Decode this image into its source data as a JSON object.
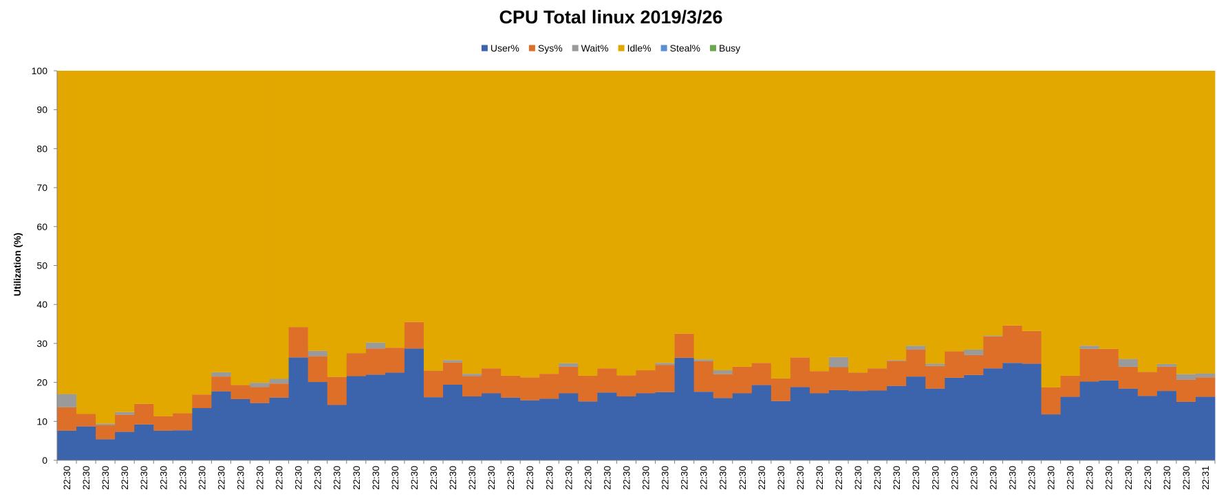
{
  "chart_data": {
    "type": "bar",
    "stacked": true,
    "title": "CPU Total linux  2019/3/26",
    "ylabel": "Utilization (%)",
    "xlabel": "",
    "ylim": [
      0,
      100
    ],
    "yticks": [
      0,
      10,
      20,
      30,
      40,
      50,
      60,
      70,
      80,
      90,
      100
    ],
    "legend_position": "top-center",
    "grid": false,
    "categories": [
      "22:30",
      "22:30",
      "22:30",
      "22:30",
      "22:30",
      "22:30",
      "22:30",
      "22:30",
      "22:30",
      "22:30",
      "22:30",
      "22:30",
      "22:30",
      "22:30",
      "22:30",
      "22:30",
      "22:30",
      "22:30",
      "22:30",
      "22:30",
      "22:30",
      "22:30",
      "22:30",
      "22:30",
      "22:30",
      "22:30",
      "22:30",
      "22:30",
      "22:30",
      "22:30",
      "22:30",
      "22:30",
      "22:30",
      "22:30",
      "22:30",
      "22:30",
      "22:30",
      "22:30",
      "22:30",
      "22:30",
      "22:30",
      "22:30",
      "22:30",
      "22:30",
      "22:30",
      "22:30",
      "22:30",
      "22:30",
      "22:30",
      "22:30",
      "22:30",
      "22:30",
      "22:30",
      "22:30",
      "22:30",
      "22:30",
      "22:30",
      "22:30",
      "22:30",
      "22:31"
    ],
    "series": [
      {
        "name": "User%",
        "color": "#3c64ad",
        "values": [
          7.6,
          8.7,
          5.4,
          7.3,
          9.2,
          7.6,
          7.7,
          13.4,
          17.7,
          15.7,
          14.7,
          16.1,
          26.4,
          20.1,
          14.2,
          21.6,
          22,
          22.5,
          28.7,
          16.2,
          19.4,
          16.4,
          17.2,
          16.1,
          15.4,
          15.8,
          17.2,
          15.1,
          17.4,
          16.4,
          17.2,
          17.5,
          26.3,
          17.6,
          16,
          17.2,
          19.3,
          15.2,
          18.8,
          17.2,
          18,
          17.8,
          17.9,
          19.1,
          21.5,
          18.4,
          21.2,
          21.9,
          23.6,
          25,
          24.8,
          11.8,
          16.3,
          20.2,
          20.5,
          18.4,
          16.5,
          17.8,
          15,
          16.3
        ]
      },
      {
        "name": "Sys%",
        "color": "#de6f28",
        "values": [
          6,
          3.2,
          3.6,
          4.4,
          5.3,
          3.7,
          4.4,
          3.5,
          3.8,
          3.6,
          4.1,
          3.6,
          7.8,
          6.6,
          7.2,
          5.9,
          6.7,
          6.4,
          6.8,
          6.8,
          5.7,
          5.2,
          6.4,
          5.6,
          5.9,
          6.4,
          6.8,
          6.6,
          6.2,
          5.4,
          5.9,
          7,
          6.2,
          7.8,
          6.1,
          6.8,
          5.7,
          5.8,
          7.6,
          5.7,
          5.9,
          4.7,
          5.7,
          6.4,
          6.9,
          5.8,
          6.8,
          5.1,
          8.2,
          9.6,
          8.4,
          6.9,
          5.4,
          8.4,
          8.1,
          5.6,
          6.2,
          6.2,
          5.7,
          5
        ]
      },
      {
        "name": "Wait%",
        "color": "#9a9a9a",
        "values": [
          3.4,
          0,
          0.4,
          0.7,
          0,
          0,
          0,
          0,
          1.1,
          0,
          1.1,
          1.2,
          0,
          1.4,
          0,
          0,
          1.5,
          0,
          0,
          0,
          0.6,
          0.6,
          0,
          0,
          0,
          0,
          0.9,
          0,
          0,
          0,
          0,
          0.5,
          0,
          0.5,
          1,
          0,
          0,
          0,
          0,
          0,
          2.6,
          0,
          0,
          0.2,
          1,
          0.6,
          0,
          1.4,
          0.2,
          0,
          0,
          0,
          0,
          0.8,
          0,
          2,
          0,
          0.7,
          1.4,
          1
        ]
      },
      {
        "name": "Idle%",
        "color": "#e3a800",
        "values": [
          83,
          88.1,
          90.6,
          87.6,
          85.5,
          88.7,
          87.9,
          83.1,
          77.4,
          80.7,
          80.1,
          79.1,
          65.8,
          71.9,
          78.6,
          72.5,
          69.8,
          71.1,
          64.5,
          77,
          74.3,
          77.8,
          76.4,
          78.3,
          78.7,
          77.8,
          75.1,
          78.3,
          76.4,
          78.2,
          76.9,
          75,
          67.5,
          74.1,
          76.9,
          76,
          75,
          79,
          73.6,
          77.1,
          73.5,
          77.5,
          76.4,
          74.3,
          70.6,
          75.2,
          72,
          71.6,
          68,
          65.4,
          66.8,
          81.3,
          78.3,
          70.6,
          71.4,
          74,
          77.3,
          75.3,
          77.9,
          77.7
        ]
      },
      {
        "name": "Steal%",
        "color": "#5b8fd0",
        "values": [
          0,
          0,
          0,
          0,
          0,
          0,
          0,
          0,
          0,
          0,
          0,
          0,
          0,
          0,
          0,
          0,
          0,
          0,
          0,
          0,
          0,
          0,
          0,
          0,
          0,
          0,
          0,
          0,
          0,
          0,
          0,
          0,
          0,
          0,
          0,
          0,
          0,
          0,
          0,
          0,
          0,
          0,
          0,
          0,
          0,
          0,
          0,
          0,
          0,
          0,
          0,
          0,
          0,
          0,
          0,
          0,
          0,
          0,
          0,
          0
        ]
      },
      {
        "name": "Busy",
        "color": "#6aa84f",
        "values": [
          0,
          0,
          0,
          0,
          0,
          0,
          0,
          0,
          0,
          0,
          0,
          0,
          0,
          0,
          0,
          0,
          0,
          0,
          0,
          0,
          0,
          0,
          0,
          0,
          0,
          0,
          0,
          0,
          0,
          0,
          0,
          0,
          0,
          0,
          0,
          0,
          0,
          0,
          0,
          0,
          0,
          0,
          0,
          0,
          0,
          0,
          0,
          0,
          0,
          0,
          0,
          0,
          0,
          0,
          0,
          0,
          0,
          0,
          0,
          0
        ]
      }
    ]
  }
}
